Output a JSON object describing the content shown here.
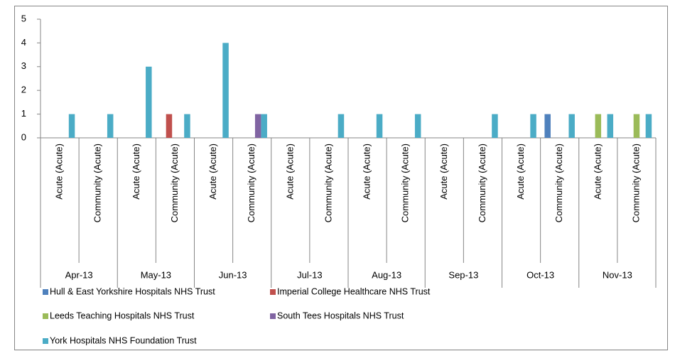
{
  "chart_data": {
    "type": "bar",
    "groups": [
      "Apr-13",
      "May-13",
      "Jun-13",
      "Jul-13",
      "Aug-13",
      "Sep-13",
      "Oct-13",
      "Nov-13"
    ],
    "categories": [
      "Acute (Acute)",
      "Community (Acute)",
      "Acute (Acute)",
      "Community (Acute)",
      "Acute (Acute)",
      "Community (Acute)",
      "Acute (Acute)",
      "Community (Acute)",
      "Acute (Acute)",
      "Community (Acute)",
      "Acute (Acute)",
      "Community (Acute)",
      "Acute (Acute)",
      "Community (Acute)",
      "Acute (Acute)",
      "Community (Acute)"
    ],
    "series": [
      {
        "name": "Hull & East Yorkshire Hospitals NHS Trust",
        "color": "#4f81bd",
        "values": [
          0,
          0,
          0,
          0,
          0,
          0,
          0,
          0,
          0,
          0,
          0,
          0,
          0,
          1,
          0,
          0
        ]
      },
      {
        "name": "Imperial College Healthcare NHS Trust",
        "color": "#c0504d",
        "values": [
          0,
          0,
          0,
          1,
          0,
          0,
          0,
          0,
          0,
          0,
          0,
          0,
          0,
          0,
          0,
          0
        ]
      },
      {
        "name": "Leeds Teaching Hospitals NHS Trust",
        "color": "#9bbb59",
        "values": [
          0,
          0,
          0,
          0,
          0,
          0,
          0,
          0,
          0,
          0,
          0,
          0,
          0,
          0,
          1,
          1
        ]
      },
      {
        "name": "South Tees Hospitals NHS Trust",
        "color": "#8064a2",
        "values": [
          0,
          0,
          0,
          0,
          0,
          1,
          0,
          0,
          0,
          0,
          0,
          0,
          0,
          0,
          0,
          0
        ]
      },
      {
        "name": "York Hospitals NHS Foundation Trust",
        "color": "#4bacc6",
        "values": [
          1,
          1,
          3,
          1,
          4,
          1,
          0,
          1,
          1,
          1,
          0,
          1,
          1,
          1,
          1,
          1
        ]
      }
    ],
    "ylim": [
      0,
      5
    ],
    "yticks": [
      0,
      1,
      2,
      3,
      4,
      5
    ],
    "grid": false
  }
}
